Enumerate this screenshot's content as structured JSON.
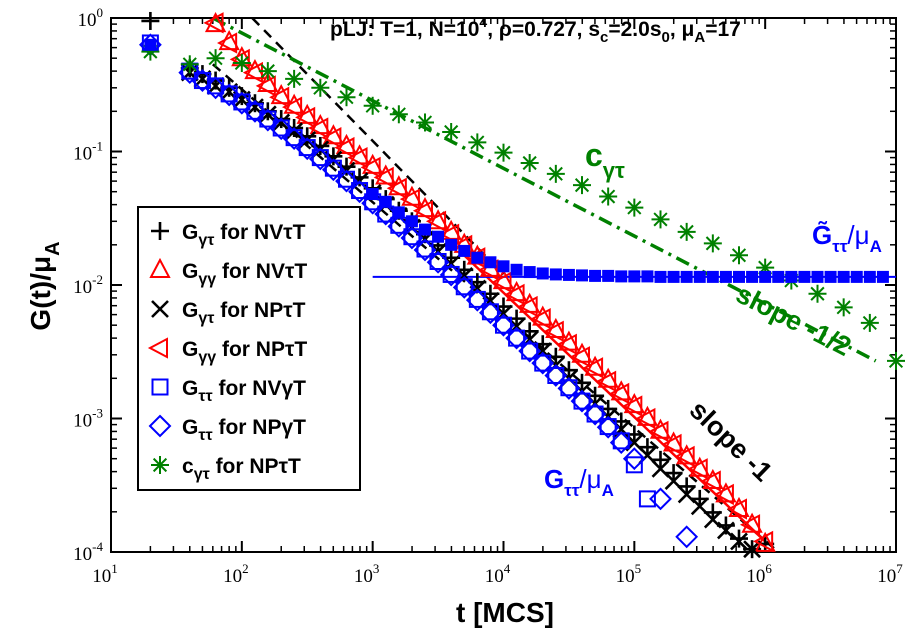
{
  "chart_data": {
    "type": "scatter",
    "title": "pLJ: T=1, N=10^4, ρ=0.727, s_c=2.0s_0, μ_A=17",
    "title_parts": {
      "prefix": "pLJ: T=1, N=10",
      "n_exp": "4",
      "rho": ", ρ=0.727, s",
      "sc_sub": "c",
      "sc_mid": "=2.0s",
      "s0_sub": "0",
      "mu": ", μ",
      "mu_sub": "A",
      "mu_val": "=17"
    },
    "xlabel": "t [MCS]",
    "ylabel": "G(t)/μ_A",
    "ylabel_parts": {
      "main": "G(t)/μ",
      "sub": "A"
    },
    "xscale": "log",
    "yscale": "log",
    "xlim": [
      10,
      10000000
    ],
    "ylim": [
      0.0001,
      1
    ],
    "x_ticks": [
      {
        "value": 10,
        "base": "10",
        "exp": "1"
      },
      {
        "value": 100,
        "base": "10",
        "exp": "2"
      },
      {
        "value": 1000,
        "base": "10",
        "exp": "3"
      },
      {
        "value": 10000,
        "base": "10",
        "exp": "4"
      },
      {
        "value": 100000,
        "base": "10",
        "exp": "5"
      },
      {
        "value": 1000000,
        "base": "10",
        "exp": "6"
      },
      {
        "value": 10000000,
        "base": "10",
        "exp": "7"
      }
    ],
    "y_ticks": [
      {
        "value": 0.0001,
        "base": "10",
        "exp": "-4"
      },
      {
        "value": 0.001,
        "base": "10",
        "exp": "-3"
      },
      {
        "value": 0.01,
        "base": "10",
        "exp": "-2"
      },
      {
        "value": 0.1,
        "base": "10",
        "exp": "-1"
      },
      {
        "value": 1,
        "base": "10",
        "exp": "0"
      }
    ],
    "legend_position": "left",
    "series": [
      {
        "name": "G_γτ for NVτT",
        "main": "G",
        "sub": "γτ",
        "rest": " for NVτT",
        "marker": "plus",
        "color": "#000000",
        "x": [
          20,
          40,
          50,
          63,
          80,
          100,
          126,
          158,
          200,
          251,
          316,
          398,
          501,
          631,
          794,
          1000,
          1259,
          1585,
          1995,
          2512,
          3162,
          3981,
          5012,
          6310,
          7943,
          10000,
          12589,
          15849,
          19953,
          25119,
          31623,
          39811,
          50119,
          63096,
          79433,
          100000,
          125893,
          158489,
          199526,
          251189,
          316228,
          398107,
          501187,
          630957,
          794328,
          1000000
        ],
        "y": [
          0.95,
          0.42,
          0.38,
          0.34,
          0.3,
          0.26,
          0.23,
          0.2,
          0.175,
          0.15,
          0.13,
          0.11,
          0.092,
          0.077,
          0.064,
          0.053,
          0.044,
          0.036,
          0.03,
          0.024,
          0.0198,
          0.016,
          0.013,
          0.0105,
          0.0086,
          0.0069,
          0.0056,
          0.0045,
          0.0036,
          0.0029,
          0.0023,
          0.00185,
          0.00148,
          0.00118,
          0.00095,
          0.00076,
          0.00061,
          0.00049,
          0.00039,
          0.00031,
          0.00025,
          0.000198,
          0.000158,
          0.000126,
          0.000105,
          0.000115
        ]
      },
      {
        "name": "G_γγ for NVτT",
        "main": "G",
        "sub": "γγ",
        "rest": " for NVτT",
        "marker": "triangle-up",
        "color": "#ff0000",
        "x": [
          63,
          80,
          100,
          126,
          158,
          200,
          251,
          316,
          398,
          501,
          631,
          794,
          1000,
          1259,
          1585,
          1995,
          2512,
          3162,
          3981,
          5012,
          6310,
          7943,
          10000,
          12589,
          15849,
          19953,
          25119,
          31623,
          39811,
          50119,
          63096,
          79433,
          100000,
          125893,
          158489,
          199526,
          251189,
          316228,
          398107,
          501187,
          630957,
          794328,
          1000000
        ],
        "y": [
          0.9,
          0.66,
          0.5,
          0.4,
          0.32,
          0.26,
          0.22,
          0.185,
          0.155,
          0.13,
          0.11,
          0.092,
          0.078,
          0.065,
          0.054,
          0.045,
          0.037,
          0.03,
          0.025,
          0.02,
          0.0163,
          0.0132,
          0.0107,
          0.0087,
          0.0071,
          0.0057,
          0.0046,
          0.0037,
          0.003,
          0.0024,
          0.00195,
          0.00157,
          0.00126,
          0.00101,
          0.00081,
          0.00065,
          0.00052,
          0.00042,
          0.00034,
          0.00027,
          0.00021,
          0.00016,
          0.000115
        ]
      },
      {
        "name": "G_γτ for NPτT",
        "main": "G",
        "sub": "γτ",
        "rest": " for NPτT",
        "marker": "cross",
        "color": "#000000",
        "x": [
          40,
          50,
          63,
          80,
          100,
          126,
          158,
          200,
          251,
          316,
          398,
          501,
          631,
          794,
          1000,
          1259,
          1585,
          1995,
          2512,
          3162,
          3981,
          5012,
          6310,
          7943,
          10000,
          12589,
          15849,
          19953,
          25119,
          31623,
          39811,
          50119,
          63096,
          79433,
          100000,
          125893,
          158489,
          199526,
          251189,
          316228,
          398107,
          501187,
          630957,
          794328
        ],
        "y": [
          0.39,
          0.35,
          0.31,
          0.28,
          0.245,
          0.215,
          0.19,
          0.165,
          0.142,
          0.122,
          0.104,
          0.087,
          0.072,
          0.06,
          0.049,
          0.04,
          0.033,
          0.027,
          0.022,
          0.0178,
          0.0144,
          0.0117,
          0.0094,
          0.0076,
          0.0061,
          0.0049,
          0.0039,
          0.0032,
          0.0025,
          0.002,
          0.0016,
          0.00129,
          0.00103,
          0.00083,
          0.00066,
          0.00053,
          0.00042,
          0.00034,
          0.00027,
          0.00022,
          0.000175,
          0.000145,
          0.00012,
          0.000105
        ]
      },
      {
        "name": "G_γγ for NPτT",
        "main": "G",
        "sub": "γγ",
        "rest": " for NPτT",
        "marker": "triangle-left",
        "color": "#ff0000",
        "x": [
          63,
          80,
          100,
          126,
          158,
          200,
          251,
          316,
          398,
          501,
          631,
          794,
          1000,
          1259,
          1585,
          1995,
          2512,
          3162,
          3981,
          5012,
          6310,
          7943,
          10000,
          12589,
          15849,
          19953,
          25119,
          31623,
          39811,
          50119,
          63096,
          79433,
          100000,
          125893,
          158489,
          199526,
          251189,
          316228,
          398107,
          501187,
          630957,
          794328,
          1000000
        ],
        "y": [
          0.92,
          0.65,
          0.49,
          0.39,
          0.31,
          0.255,
          0.215,
          0.18,
          0.15,
          0.127,
          0.107,
          0.09,
          0.076,
          0.064,
          0.053,
          0.044,
          0.036,
          0.03,
          0.024,
          0.0198,
          0.016,
          0.013,
          0.0105,
          0.0085,
          0.0069,
          0.0056,
          0.0045,
          0.0036,
          0.0029,
          0.0024,
          0.0019,
          0.00154,
          0.00124,
          0.001,
          0.0008,
          0.00064,
          0.00052,
          0.00042,
          0.00034,
          0.00027,
          0.00021,
          0.00016,
          0.00012
        ]
      },
      {
        "name": "G_ττ for NVγT",
        "main": "G",
        "sub": "ττ",
        "rest": " for NVγT",
        "marker": "square",
        "color": "#0000ff",
        "x": [
          20,
          40,
          50,
          63,
          80,
          100,
          126,
          158,
          200,
          251,
          316,
          398,
          501,
          631,
          794,
          1000,
          1259,
          1585,
          1995,
          2512,
          3162,
          3981,
          5012,
          6310,
          7943,
          10000,
          12589,
          15849,
          19953,
          25119,
          31623,
          39811,
          50119,
          63096,
          79433,
          100000,
          125893
        ],
        "y": [
          0.65,
          0.4,
          0.34,
          0.31,
          0.27,
          0.235,
          0.2,
          0.175,
          0.15,
          0.127,
          0.107,
          0.09,
          0.075,
          0.062,
          0.051,
          0.042,
          0.034,
          0.028,
          0.023,
          0.0186,
          0.015,
          0.012,
          0.0097,
          0.0078,
          0.0063,
          0.005,
          0.004,
          0.0032,
          0.0026,
          0.0021,
          0.0017,
          0.00135,
          0.00108,
          0.00087,
          0.00068,
          0.00045,
          0.00025
        ]
      },
      {
        "name": "G_ττ for NPγT",
        "main": "G",
        "sub": "ττ",
        "rest": " for NPγT",
        "marker": "diamond",
        "color": "#0000ff",
        "x": [
          20,
          40,
          50,
          63,
          80,
          100,
          126,
          158,
          200,
          251,
          316,
          398,
          501,
          631,
          794,
          1000,
          1259,
          1585,
          1995,
          2512,
          3162,
          3981,
          5012,
          6310,
          7943,
          10000,
          12589,
          15849,
          19953,
          25119,
          31623,
          39811,
          50119,
          63096,
          79433,
          100000,
          158489,
          251189
        ],
        "y": [
          0.63,
          0.39,
          0.34,
          0.3,
          0.265,
          0.23,
          0.2,
          0.172,
          0.148,
          0.125,
          0.105,
          0.088,
          0.073,
          0.06,
          0.05,
          0.041,
          0.034,
          0.0275,
          0.0225,
          0.0183,
          0.0148,
          0.0119,
          0.0096,
          0.0077,
          0.0062,
          0.005,
          0.004,
          0.0032,
          0.0026,
          0.0021,
          0.00168,
          0.00135,
          0.00108,
          0.00086,
          0.00066,
          0.0005,
          0.00025,
          0.00013
        ]
      },
      {
        "name": "c_γτ for NPτT",
        "main": "c",
        "sub": "γτ",
        "rest": " for NPτT",
        "marker": "star",
        "color": "#008000",
        "x": [
          20,
          40,
          63,
          100,
          158,
          251,
          398,
          631,
          1000,
          1585,
          2512,
          3981,
          6310,
          10000,
          15849,
          25119,
          39811,
          63096,
          100000,
          158489,
          251189,
          398107,
          630957,
          1000000,
          1584893,
          2511886,
          3981072,
          6309573,
          10000000
        ],
        "y": [
          0.56,
          0.45,
          0.5,
          0.46,
          0.4,
          0.35,
          0.3,
          0.255,
          0.22,
          0.19,
          0.165,
          0.14,
          0.117,
          0.098,
          0.082,
          0.068,
          0.056,
          0.046,
          0.038,
          0.031,
          0.025,
          0.0205,
          0.0167,
          0.0135,
          0.0108,
          0.0086,
          0.0068,
          0.0052,
          0.0027
        ]
      },
      {
        "name": "G̃_ττ/μ_A",
        "main": "G̃",
        "sub": "ττ",
        "rest": "",
        "marker": "filled-square",
        "color": "#0000ff",
        "x": [
          20,
          1000,
          1259,
          1585,
          1995,
          2512,
          3162,
          3981,
          5012,
          6310,
          7943,
          10000,
          12589,
          15849,
          19953,
          25119,
          31623,
          39811,
          50119,
          63096,
          79433,
          100000,
          125893,
          158489,
          199526,
          251189,
          316228,
          398107,
          501187,
          630957,
          794328,
          1000000,
          1258925,
          1584893,
          1995262,
          2511886,
          3162278,
          3981072,
          5011872,
          6309573,
          7943282
        ],
        "y": [
          0.63,
          0.048,
          0.042,
          0.035,
          0.03,
          0.026,
          0.023,
          0.02,
          0.018,
          0.016,
          0.0148,
          0.0138,
          0.013,
          0.0125,
          0.0122,
          0.012,
          0.0119,
          0.0118,
          0.0117,
          0.0117,
          0.0116,
          0.0116,
          0.0116,
          0.0115,
          0.0115,
          0.0115,
          0.0115,
          0.0115,
          0.0115,
          0.0115,
          0.0115,
          0.0115,
          0.0115,
          0.0115,
          0.0115,
          0.0115,
          0.0115,
          0.0115,
          0.0115,
          0.0115,
          0.0115
        ]
      }
    ],
    "reference_lines": [
      {
        "name": "slope -1 (upper)",
        "style": "dashed",
        "color": "#000000",
        "x": [
          120,
          10000
        ],
        "y": [
          1,
          0.012
        ]
      },
      {
        "name": "slope -1 (lower)",
        "style": "dashed",
        "color": "#000000",
        "x": [
          60,
          1260000
        ],
        "y": [
          0.45,
          0.0001
        ]
      },
      {
        "name": "slope -1 (solid red)",
        "style": "solid",
        "color": "#ff0000",
        "x": [
          5000,
          1000000
        ],
        "y": [
          0.0167,
          0.00012
        ]
      },
      {
        "name": "slope -1/2",
        "style": "dash-dot",
        "color": "#008000",
        "x": [
          60,
          7000000
        ],
        "y": [
          1,
          0.0027
        ]
      },
      {
        "name": "plateau",
        "style": "solid",
        "color": "#0000ff",
        "x": [
          1000,
          10000000
        ],
        "y": [
          0.0115,
          0.0115
        ]
      }
    ],
    "annotations": {
      "c_gamma_tau": {
        "main": "c",
        "sub": "γτ",
        "color": "#008000"
      },
      "g_tilde": {
        "main": "G̃",
        "sub": "ττ",
        "rest": "/μ",
        "rest_sub": "A",
        "color": "#0000ff"
      },
      "g_tautau": {
        "main": "G",
        "sub": "ττ",
        "rest": "/μ",
        "rest_sub": "A",
        "color": "#0000ff"
      },
      "slope_half": {
        "text": "slope -1/2",
        "color": "#008000"
      },
      "slope_one": {
        "text": "slope -1",
        "color": "#000000"
      }
    }
  }
}
